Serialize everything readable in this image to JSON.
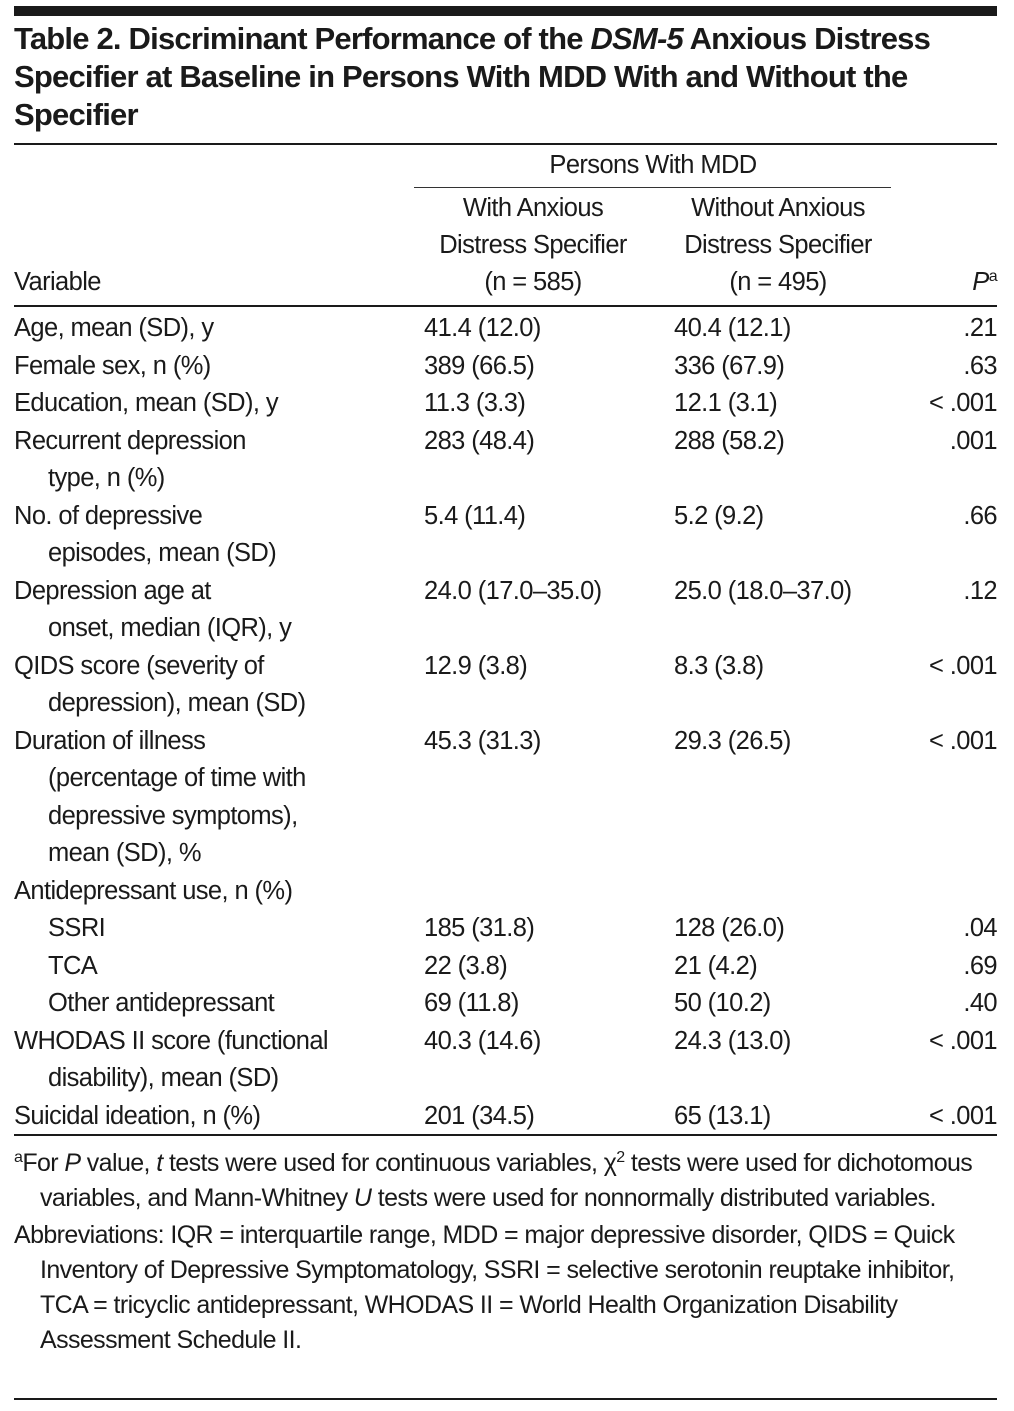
{
  "title": {
    "part1": "Table 2. Discriminant Performance of the ",
    "italic": "DSM-5",
    "part2": " Anxious Distress Specifier at Baseline in Persons With MDD With and Without the Specifier"
  },
  "header": {
    "group": "Persons With MDD",
    "variable": "Variable",
    "col1": [
      "With Anxious",
      "Distress Specifier",
      "(n = 585)"
    ],
    "col2": [
      "Without Anxious",
      "Distress Specifier",
      "(n = 495)"
    ],
    "p_label": "P",
    "p_sup": "a"
  },
  "rows": [
    {
      "label": [
        "Age, mean (SD), y"
      ],
      "v1": "41.4 (12.0)",
      "v2": "40.4 (12.1)",
      "p": ".21"
    },
    {
      "label": [
        "Female sex, n (%)"
      ],
      "v1": "389 (66.5)",
      "v2": "336 (67.9)",
      "p": ".63"
    },
    {
      "label": [
        "Education, mean (SD), y"
      ],
      "v1": "11.3 (3.3)",
      "v2": "12.1 (3.1)",
      "p": "< .001"
    },
    {
      "label": [
        "Recurrent depression",
        "type, n (%)"
      ],
      "v1": "283 (48.4)",
      "v2": "288 (58.2)",
      "p": ".001"
    },
    {
      "label": [
        "No. of depressive",
        "episodes, mean (SD)"
      ],
      "v1": "5.4 (11.4)",
      "v2": "5.2 (9.2)",
      "p": ".66"
    },
    {
      "label": [
        "Depression age at",
        "onset, median (IQR), y"
      ],
      "v1": "24.0 (17.0–35.0)",
      "v2": "25.0 (18.0–37.0)",
      "p": ".12"
    },
    {
      "label": [
        "QIDS score (severity of",
        "depression), mean (SD)"
      ],
      "v1": "12.9 (3.8)",
      "v2": "8.3 (3.8)",
      "p": "< .001"
    },
    {
      "label": [
        "Duration of illness",
        "(percentage of time with",
        "depressive symptoms),",
        "mean (SD), %"
      ],
      "v1": "45.3 (31.3)",
      "v2": "29.3 (26.5)",
      "p": "< .001"
    },
    {
      "label": [
        "Antidepressant use, n (%)"
      ],
      "v1": "",
      "v2": "",
      "p": ""
    },
    {
      "label": [
        "SSRI"
      ],
      "indent": true,
      "v1": "185 (31.8)",
      "v2": "128 (26.0)",
      "p": ".04"
    },
    {
      "label": [
        "TCA"
      ],
      "indent": true,
      "v1": "22 (3.8)",
      "v2": "21 (4.2)",
      "p": ".69"
    },
    {
      "label": [
        "Other antidepressant"
      ],
      "indent": true,
      "v1": "69 (11.8)",
      "v2": "50 (10.2)",
      "p": ".40"
    },
    {
      "label": [
        "WHODAS II score (functional",
        "disability), mean (SD)"
      ],
      "v1": "40.3 (14.6)",
      "v2": "24.3 (13.0)",
      "p": "< .001"
    },
    {
      "label": [
        "Suicidal ideation, n (%)"
      ],
      "v1": "201 (34.5)",
      "v2": "65 (13.1)",
      "p": "< .001"
    }
  ],
  "footnotes": {
    "a_sup": "a",
    "a_parts": [
      "For ",
      "P",
      " value, ",
      "t",
      " tests were used for continuous variables, χ",
      "2",
      " tests were used for dichotomous variables, and Mann-Whitney ",
      "U",
      " tests were used for nonnormally distributed variables."
    ],
    "abbreviations": "Abbreviations: IQR = interquartile range, MDD = major depressive disorder, QIDS = Quick Inventory of Depressive Symptomatology, SSRI = selective serotonin reuptake inhibitor, TCA = tricyclic antidepressant, WHODAS II = World Health Organization Disability Assessment Schedule II."
  }
}
